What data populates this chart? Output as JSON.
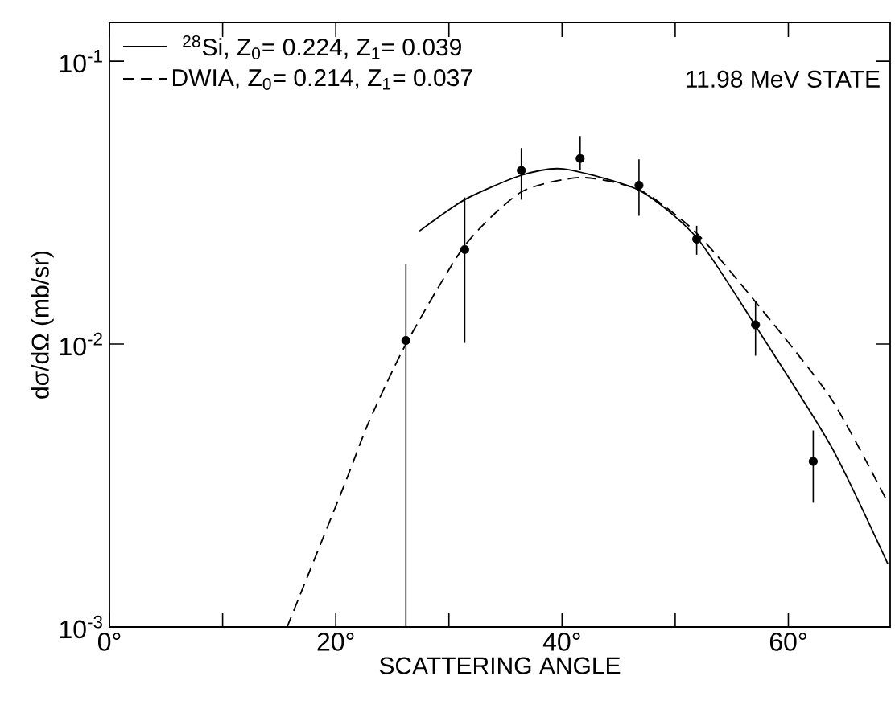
{
  "chart_data": {
    "type": "line",
    "xlabel": "SCATTERING ANGLE",
    "ylabel": "dσ/dΩ (mb/sr)",
    "log": "y",
    "xlim": [
      0,
      69
    ],
    "ylim": [
      0.001,
      0.137
    ],
    "xticks": [
      {
        "value": 0,
        "label": "0°"
      },
      {
        "value": 10,
        "label": null
      },
      {
        "value": 20,
        "label": "20°"
      },
      {
        "value": 30,
        "label": null
      },
      {
        "value": 40,
        "label": "40°"
      },
      {
        "value": 50,
        "label": null
      },
      {
        "value": 60,
        "label": "60°"
      }
    ],
    "yticks": [
      {
        "value": 0.001,
        "label": "10$^{-3}$"
      },
      {
        "value": 0.01,
        "label": "10$^{-2}$"
      },
      {
        "value": 0.1,
        "label": "10$^{-1}$"
      }
    ],
    "legend": "top left",
    "marker": "circle",
    "annotations": [
      "11.98 MeV STATE"
    ],
    "series": [
      {
        "name": "$^{28}$Si, Z$_{0}$= 0.224, Z$_{1}$= 0.039",
        "type": "line",
        "line_style": "solid",
        "marker": "none",
        "color": "#000000",
        "x": [
          27.4,
          31.4,
          36.3,
          40.1,
          46.8,
          51.9,
          57.1,
          63.8,
          68.8
        ],
        "values": [
          0.0251,
          0.0324,
          0.0394,
          0.0416,
          0.035,
          0.0238,
          0.0116,
          0.00434,
          0.00167
        ]
      },
      {
        "name": "DWIA, Z$_{0}$= 0.214, Z$_{1}$= 0.037",
        "type": "line",
        "line_style": "dashed",
        "marker": "none",
        "color": "#000000",
        "x": [
          15.7,
          20.8,
          22.9,
          26.2,
          31.4,
          36.4,
          41.7,
          46.9,
          51.8,
          57.1,
          63.8,
          68.8
        ],
        "values": [
          0.001,
          0.00321,
          0.00528,
          0.01,
          0.0223,
          0.0345,
          0.0388,
          0.035,
          0.0249,
          0.0141,
          0.0064,
          0.00275
        ]
      },
      {
        "type": "scatter",
        "color": "#000000",
        "x": [
          26.2,
          31.4,
          36.4,
          41.6,
          46.8,
          51.9,
          57.1,
          62.2
        ],
        "values": [
          0.0103,
          0.0216,
          0.0411,
          0.0453,
          0.0364,
          0.0235,
          0.0117,
          0.00385
        ],
        "errors": [
          [
            0.001,
            0.0192
          ],
          [
            0.0101,
            0.033
          ],
          [
            0.0324,
            0.0493
          ],
          [
            0.0411,
            0.0544
          ],
          [
            0.0284,
            0.045
          ],
          [
            0.0207,
            0.0262
          ],
          [
            0.0091,
            0.0142
          ],
          [
            0.00275,
            0.00495
          ]
        ]
      }
    ]
  }
}
